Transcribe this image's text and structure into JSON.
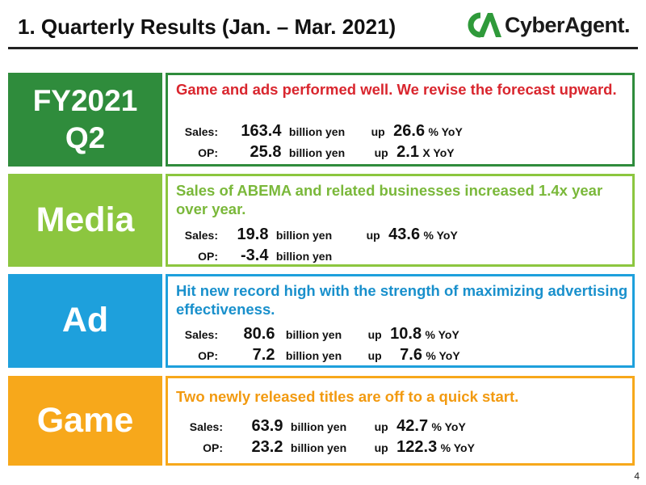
{
  "header": {
    "title": "1.  Quarterly Results  (Jan. – Mar. 2021)",
    "logo_text": "CyberAgent."
  },
  "colors": {
    "summary": "#2f8c3c",
    "media": "#8cc63f",
    "ad": "#1ea0dc",
    "game": "#f7a81b",
    "summary_headline": "#d9262e"
  },
  "sections": [
    {
      "label_line1": "FY2021",
      "label_line2": "Q2",
      "headline": "Game and ads performed well. We revise the forecast upward.",
      "sales_label": "Sales:",
      "sales_value": "163.4",
      "sales_unit": "billion yen",
      "sales_up": "up",
      "sales_pct": "26.6",
      "sales_suffix": "% YoY",
      "op_label": "OP:",
      "op_value": "25.8",
      "op_unit": "billion yen",
      "op_up": "up",
      "op_pct": "2.1",
      "op_suffix": "X  YoY"
    },
    {
      "label_line1": "Media",
      "headline": "Sales of ABEMA and related businesses increased 1.4x year over year.",
      "sales_label": "Sales:",
      "sales_value": "19.8",
      "sales_unit": "billion yen",
      "sales_up": "up",
      "sales_pct": "43.6",
      "sales_suffix": "% YoY",
      "op_label": "OP:",
      "op_value": "-3.4",
      "op_unit": "billion yen"
    },
    {
      "label_line1": "Ad",
      "headline": "Hit new record high with the strength of maximizing advertising effectiveness.",
      "sales_label": "Sales:",
      "sales_value": "80.6",
      "sales_unit": "billion yen",
      "sales_up": "up",
      "sales_pct": "10.8",
      "sales_suffix": "% YoY",
      "op_label": "OP:",
      "op_value": "7.2",
      "op_unit": "billion yen",
      "op_up": "up",
      "op_pct": "7.6",
      "op_suffix": "% YoY"
    },
    {
      "label_line1": "Game",
      "headline": "Two newly released titles are off to a quick start.",
      "sales_label": "Sales:",
      "sales_value": "63.9",
      "sales_unit": "billion yen",
      "sales_up": "up",
      "sales_pct": "42.7",
      "sales_suffix": "% YoY",
      "op_label": "OP:",
      "op_value": "23.2",
      "op_unit": "billion yen",
      "op_up": "up",
      "op_pct": "122.3",
      "op_suffix": "% YoY"
    }
  ],
  "footer": {
    "page_number": "4"
  }
}
